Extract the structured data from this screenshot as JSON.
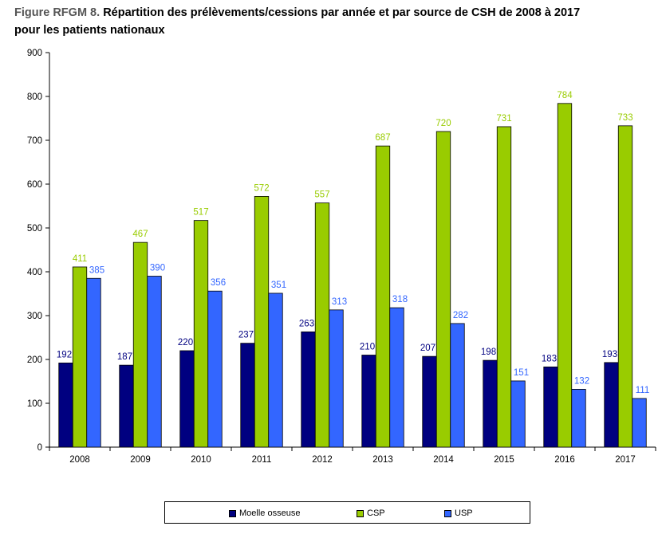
{
  "figure": {
    "prefix": "Figure RFGM 8.",
    "title_line1": "Répartition des prélèvements/cessions par année et par source de CSH de 2008 à 2017",
    "title_line2": "pour les patients nationaux"
  },
  "colors": {
    "moelle": "#000080",
    "csp": "#99CC00",
    "usp": "#3366FF"
  },
  "chart_data": {
    "type": "bar",
    "categories": [
      "2008",
      "2009",
      "2010",
      "2011",
      "2012",
      "2013",
      "2014",
      "2015",
      "2016",
      "2017"
    ],
    "series": [
      {
        "name": "Moelle osseuse",
        "values": [
          192,
          187,
          220,
          237,
          263,
          210,
          207,
          198,
          183,
          193
        ]
      },
      {
        "name": "CSP",
        "values": [
          411,
          467,
          517,
          572,
          557,
          687,
          720,
          731,
          784,
          733
        ]
      },
      {
        "name": "USP",
        "values": [
          385,
          390,
          356,
          351,
          313,
          318,
          282,
          151,
          132,
          111
        ]
      }
    ],
    "ylim": [
      0,
      900
    ],
    "yticks": [
      0,
      100,
      200,
      300,
      400,
      500,
      600,
      700,
      800,
      900
    ],
    "grid": false,
    "legend": "bottom",
    "title": "",
    "xlabel": "",
    "ylabel": ""
  },
  "legend": {
    "moelle_label": "Moelle osseuse",
    "csp_label": "CSP",
    "usp_label": "USP"
  }
}
